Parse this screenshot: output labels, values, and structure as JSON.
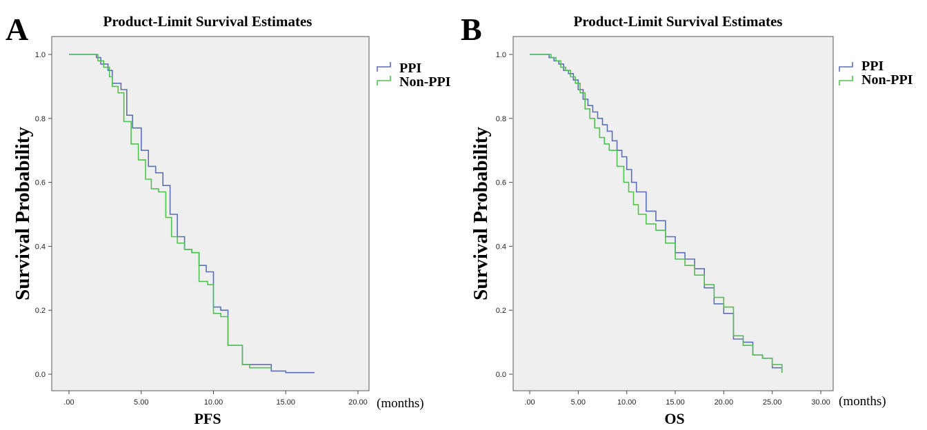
{
  "chart_data": [
    {
      "type": "line",
      "panel_label": "A",
      "title": "Product-Limit Survival Estimates",
      "xlabel": "PFS",
      "ylabel": "Survival Probability",
      "x_unit": "(months)",
      "xlim": [
        0,
        20
      ],
      "ylim": [
        0,
        1
      ],
      "x_ticks": [
        0,
        5,
        10,
        15,
        20
      ],
      "x_tick_labels": [
        ".00",
        "5.00",
        "10.00",
        "15.00",
        "20.00"
      ],
      "y_ticks": [
        0,
        0.2,
        0.4,
        0.6,
        0.8,
        1.0
      ],
      "y_tick_labels": [
        "0.0",
        "0.2",
        "0.4",
        "0.6",
        "0.8",
        "1.0"
      ],
      "grid": false,
      "legend_position": "right-top",
      "series": [
        {
          "name": "PPI",
          "color": "#5b6fb4",
          "step": true,
          "x": [
            0,
            1.9,
            2.2,
            2.7,
            3.0,
            3.6,
            4.0,
            4.4,
            5.0,
            5.5,
            6.0,
            6.5,
            7.0,
            7.5,
            8.0,
            8.5,
            9.0,
            9.5,
            10.0,
            10.5,
            11.0,
            12.0,
            13.0,
            14.0,
            15.0,
            17.0
          ],
          "y": [
            1.0,
            0.99,
            0.97,
            0.95,
            0.91,
            0.89,
            0.81,
            0.77,
            0.7,
            0.65,
            0.63,
            0.59,
            0.5,
            0.43,
            0.39,
            0.38,
            0.34,
            0.32,
            0.21,
            0.2,
            0.09,
            0.03,
            0.03,
            0.01,
            0.005,
            0.005
          ]
        },
        {
          "name": "Non-PPI",
          "color": "#4ec24e",
          "step": true,
          "x": [
            0,
            2.0,
            2.4,
            2.8,
            3.0,
            3.4,
            3.8,
            4.3,
            4.8,
            5.3,
            5.7,
            6.2,
            6.7,
            7.1,
            7.5,
            8.0,
            8.5,
            9.0,
            9.6,
            10.0,
            10.5,
            11.0,
            12.0,
            12.5,
            14.0
          ],
          "y": [
            1.0,
            0.98,
            0.96,
            0.93,
            0.9,
            0.88,
            0.79,
            0.72,
            0.67,
            0.61,
            0.58,
            0.57,
            0.49,
            0.43,
            0.41,
            0.39,
            0.38,
            0.29,
            0.28,
            0.19,
            0.18,
            0.09,
            0.03,
            0.02,
            0.02
          ]
        }
      ]
    },
    {
      "type": "line",
      "panel_label": "B",
      "title": "Product-Limit Survival Estimates",
      "xlabel": "OS",
      "ylabel": "Survival Probability",
      "x_unit": "(months)",
      "xlim": [
        0,
        30
      ],
      "ylim": [
        0,
        1
      ],
      "x_ticks": [
        0,
        5,
        10,
        15,
        20,
        25,
        30
      ],
      "x_tick_labels": [
        ".00",
        "5.00",
        "10.00",
        "15.00",
        "20.00",
        "25.00",
        "30.00"
      ],
      "y_ticks": [
        0,
        0.2,
        0.4,
        0.6,
        0.8,
        1.0
      ],
      "y_tick_labels": [
        "0.0",
        "0.2",
        "0.4",
        "0.6",
        "0.8",
        "1.0"
      ],
      "grid": false,
      "legend_position": "right-top",
      "series": [
        {
          "name": "PPI",
          "color": "#5b6fb4",
          "step": true,
          "x": [
            0,
            2.0,
            2.5,
            3.0,
            3.5,
            4.0,
            4.5,
            5.0,
            5.5,
            6.0,
            6.5,
            7.0,
            7.5,
            8.0,
            8.5,
            9.0,
            9.5,
            10.0,
            10.5,
            11.0,
            12.0,
            13.0,
            14.0,
            15.0,
            16.0,
            17.0,
            18.0,
            19.0,
            20.0,
            21.0,
            22.0,
            23.0,
            24.0,
            25.0,
            26.0
          ],
          "y": [
            1.0,
            0.99,
            0.98,
            0.97,
            0.95,
            0.94,
            0.92,
            0.89,
            0.86,
            0.84,
            0.82,
            0.8,
            0.78,
            0.76,
            0.73,
            0.7,
            0.68,
            0.64,
            0.6,
            0.57,
            0.51,
            0.48,
            0.43,
            0.38,
            0.36,
            0.33,
            0.27,
            0.22,
            0.19,
            0.11,
            0.1,
            0.06,
            0.05,
            0.02,
            0.005
          ]
        },
        {
          "name": "Non-PPI",
          "color": "#4ec24e",
          "step": true,
          "x": [
            0,
            2.2,
            2.7,
            3.2,
            3.7,
            4.2,
            4.7,
            5.2,
            5.7,
            6.2,
            6.7,
            7.2,
            7.7,
            8.2,
            9.0,
            9.7,
            10.2,
            10.7,
            11.2,
            12.0,
            13.0,
            14.0,
            15.0,
            16.0,
            17.0,
            18.0,
            19.0,
            20.0,
            21.0,
            22.0,
            23.0,
            24.0,
            25.0,
            26.0
          ],
          "y": [
            1.0,
            0.99,
            0.98,
            0.96,
            0.95,
            0.93,
            0.91,
            0.88,
            0.83,
            0.8,
            0.77,
            0.74,
            0.72,
            0.7,
            0.65,
            0.6,
            0.57,
            0.53,
            0.5,
            0.47,
            0.45,
            0.41,
            0.36,
            0.34,
            0.31,
            0.28,
            0.24,
            0.21,
            0.12,
            0.09,
            0.06,
            0.05,
            0.03,
            0.005
          ]
        }
      ]
    }
  ]
}
